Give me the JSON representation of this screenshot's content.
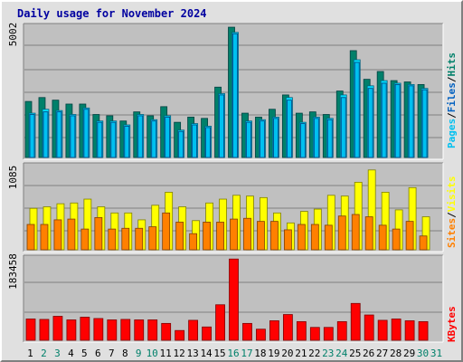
{
  "title": "Daily usage for November 2024",
  "colors": {
    "hits": "#00806a",
    "files": "#00e0ff",
    "pages": "#00c0f0",
    "visits": "#ffff00",
    "sites": "#ff8000",
    "kbytes": "#ff0000",
    "panel_bg": "#c0c0c0",
    "grid": "#808080",
    "weekend_label": "#00806a",
    "weekday_label": "#000000"
  },
  "chart_data": [
    {
      "type": "bar",
      "name": "hits-files-pages",
      "ytick_label": "5002",
      "ylim": [
        0,
        5002
      ],
      "legend": [
        "Pages",
        "/",
        "Files",
        "/",
        "Hits"
      ],
      "categories": [
        "1",
        "2",
        "3",
        "4",
        "5",
        "6",
        "7",
        "8",
        "9",
        "10",
        "11",
        "12",
        "13",
        "14",
        "15",
        "16",
        "17",
        "18",
        "19",
        "20",
        "21",
        "22",
        "23",
        "24",
        "25",
        "26",
        "27",
        "28",
        "29",
        "30",
        "31"
      ],
      "series": [
        {
          "name": "Hits",
          "values": [
            2150,
            2300,
            2200,
            2050,
            2050,
            1650,
            1600,
            1400,
            1750,
            1600,
            1950,
            1350,
            1550,
            1500,
            2700,
            5000,
            1700,
            1550,
            1850,
            2400,
            1700,
            1750,
            1650,
            2550,
            4100,
            3000,
            3300,
            2950,
            2900,
            2800,
            0
          ]
        },
        {
          "name": "Files",
          "values": [
            1700,
            1850,
            1800,
            1650,
            1900,
            1400,
            1400,
            1250,
            1650,
            1450,
            1600,
            1050,
            1300,
            1200,
            2450,
            4800,
            1400,
            1450,
            1550,
            2300,
            1350,
            1550,
            1500,
            2400,
            3750,
            2750,
            2950,
            2850,
            2800,
            2650,
            0
          ]
        },
        {
          "name": "Pages",
          "values": [
            1650,
            1750,
            1750,
            1600,
            1850,
            1350,
            1350,
            1200,
            1600,
            1400,
            1550,
            1000,
            1250,
            1150,
            2400,
            4750,
            1350,
            1400,
            1500,
            2200,
            1300,
            1500,
            1450,
            2300,
            3650,
            2650,
            2850,
            2800,
            2750,
            2600,
            0
          ]
        }
      ]
    },
    {
      "type": "bar",
      "name": "visits-sites",
      "ytick_label": "1085",
      "ylim": [
        0,
        1085
      ],
      "legend": [
        "Sites",
        "/",
        "Visits"
      ],
      "categories": [
        "1",
        "2",
        "3",
        "4",
        "5",
        "6",
        "7",
        "8",
        "9",
        "10",
        "11",
        "12",
        "13",
        "14",
        "15",
        "16",
        "17",
        "18",
        "19",
        "20",
        "21",
        "22",
        "23",
        "24",
        "25",
        "26",
        "27",
        "28",
        "29",
        "30",
        "31"
      ],
      "series": [
        {
          "name": "Visits",
          "values": [
            540,
            560,
            600,
            610,
            660,
            560,
            480,
            480,
            390,
            580,
            750,
            560,
            380,
            610,
            660,
            710,
            700,
            680,
            480,
            350,
            500,
            530,
            710,
            700,
            880,
            1040,
            750,
            520,
            810,
            430,
            0
          ]
        },
        {
          "name": "Sites",
          "values": [
            330,
            330,
            390,
            400,
            270,
            420,
            270,
            280,
            280,
            300,
            480,
            360,
            210,
            360,
            360,
            400,
            410,
            370,
            370,
            260,
            330,
            330,
            320,
            440,
            460,
            430,
            320,
            270,
            370,
            180,
            0
          ]
        }
      ]
    },
    {
      "type": "bar",
      "name": "kbytes",
      "ytick_label": "183458",
      "ylim": [
        0,
        183458
      ],
      "legend": [
        "KBytes"
      ],
      "categories": [
        "1",
        "2",
        "3",
        "4",
        "5",
        "6",
        "7",
        "8",
        "9",
        "10",
        "11",
        "12",
        "13",
        "14",
        "15",
        "16",
        "17",
        "18",
        "19",
        "20",
        "21",
        "22",
        "23",
        "24",
        "25",
        "26",
        "27",
        "28",
        "29",
        "30",
        "31"
      ],
      "series": [
        {
          "name": "KBytes",
          "values": [
            48000,
            47000,
            54000,
            46000,
            52000,
            49000,
            46000,
            47000,
            46000,
            46000,
            38000,
            22000,
            45000,
            30000,
            80000,
            183000,
            38000,
            25000,
            44000,
            58000,
            42000,
            29000,
            29000,
            42000,
            83000,
            57000,
            45000,
            48000,
            44000,
            42000,
            0
          ]
        }
      ]
    }
  ],
  "x_labels": [
    {
      "text": "1",
      "weekend": false
    },
    {
      "text": "2",
      "weekend": true
    },
    {
      "text": "3",
      "weekend": true
    },
    {
      "text": "4",
      "weekend": false
    },
    {
      "text": "5",
      "weekend": false
    },
    {
      "text": "6",
      "weekend": false
    },
    {
      "text": "7",
      "weekend": false
    },
    {
      "text": "8",
      "weekend": false
    },
    {
      "text": "9",
      "weekend": true
    },
    {
      "text": "10",
      "weekend": true
    },
    {
      "text": "11",
      "weekend": false
    },
    {
      "text": "12",
      "weekend": false
    },
    {
      "text": "13",
      "weekend": false
    },
    {
      "text": "14",
      "weekend": false
    },
    {
      "text": "15",
      "weekend": false
    },
    {
      "text": "16",
      "weekend": true
    },
    {
      "text": "17",
      "weekend": true
    },
    {
      "text": "18",
      "weekend": false
    },
    {
      "text": "19",
      "weekend": false
    },
    {
      "text": "20",
      "weekend": false
    },
    {
      "text": "21",
      "weekend": false
    },
    {
      "text": "22",
      "weekend": false
    },
    {
      "text": "23",
      "weekend": true
    },
    {
      "text": "24",
      "weekend": true
    },
    {
      "text": "25",
      "weekend": false
    },
    {
      "text": "26",
      "weekend": false
    },
    {
      "text": "27",
      "weekend": false
    },
    {
      "text": "28",
      "weekend": false
    },
    {
      "text": "29",
      "weekend": false
    },
    {
      "text": "30",
      "weekend": true
    },
    {
      "text": "31",
      "weekend": true
    }
  ]
}
